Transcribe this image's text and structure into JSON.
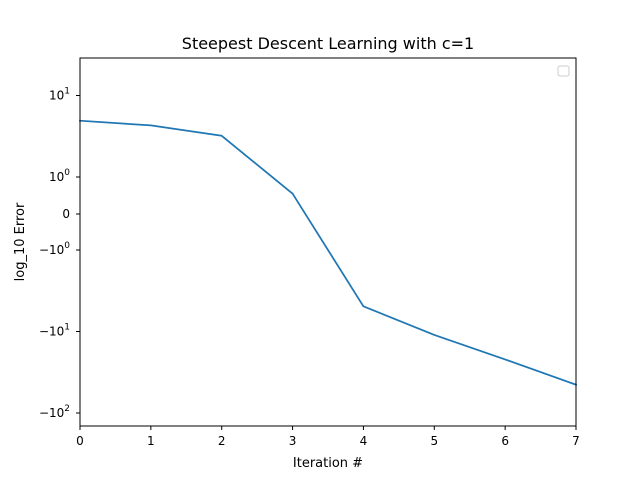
{
  "chart_data": {
    "type": "line",
    "title": "Steepest Descent Learning with c=1",
    "xlabel": "Iteration #",
    "ylabel": "log_10 Error",
    "yscale": "symlog",
    "xlim": [
      0,
      7
    ],
    "x_ticks": [
      {
        "value": 0,
        "label": "0"
      },
      {
        "value": 1,
        "label": "1"
      },
      {
        "value": 2,
        "label": "2"
      },
      {
        "value": 3,
        "label": "3"
      },
      {
        "value": 4,
        "label": "4"
      },
      {
        "value": 5,
        "label": "5"
      },
      {
        "value": 6,
        "label": "6"
      },
      {
        "value": 7,
        "label": "7"
      }
    ],
    "y_ticks": [
      {
        "value": 10,
        "base": "10",
        "exp": "1"
      },
      {
        "value": 1,
        "base": "10",
        "exp": "0"
      },
      {
        "value": 0,
        "base": "0",
        "exp": ""
      },
      {
        "value": -1,
        "base": "−10",
        "exp": "0"
      },
      {
        "value": -10,
        "base": "−10",
        "exp": "1"
      },
      {
        "value": -100,
        "base": "−10",
        "exp": "2"
      }
    ],
    "legend": "top-right (empty)",
    "grid": false,
    "series": [
      {
        "color": "#1f77b4",
        "x": [
          0,
          1,
          2,
          3,
          4,
          5,
          6,
          7
        ],
        "y": [
          4.9,
          4.3,
          3.2,
          0.55,
          -4.9,
          -11.0,
          -22.0,
          -45.0
        ]
      }
    ]
  }
}
